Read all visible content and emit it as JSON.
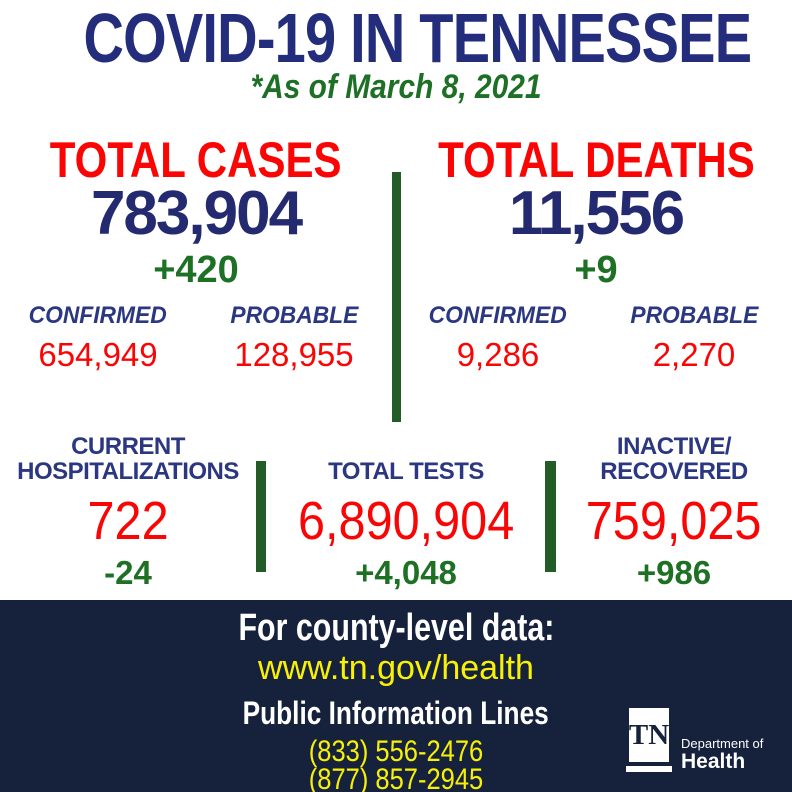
{
  "header": {
    "title": "COVID-19 IN TENNESSEE",
    "subtitle": "*As of March 8, 2021"
  },
  "colors": {
    "title_navy": "#232d7c",
    "number_navy": "#232a70",
    "label_navy": "#2b3780",
    "red": "#f90505",
    "green_text": "#1e7025",
    "green_divider": "#245c27",
    "footer_bg": "#16223c",
    "yellow": "#f8f106",
    "white": "#ffffff"
  },
  "top_stats": [
    {
      "label": "TOTAL CASES",
      "value": "783,904",
      "change": "+420",
      "breakdown": [
        {
          "label": "CONFIRMED",
          "value": "654,949"
        },
        {
          "label": "PROBABLE",
          "value": "128,955"
        }
      ]
    },
    {
      "label": "TOTAL DEATHS",
      "value": "11,556",
      "change": "+9",
      "breakdown": [
        {
          "label": "CONFIRMED",
          "value": "9,286"
        },
        {
          "label": "PROBABLE",
          "value": "2,270"
        }
      ]
    }
  ],
  "mid_stats": [
    {
      "label": "CURRENT\nHOSPITALIZATIONS",
      "value": "722",
      "change": "-24"
    },
    {
      "label": "TOTAL TESTS",
      "value": "6,890,904",
      "change": "+4,048"
    },
    {
      "label": "INACTIVE/\nRECOVERED",
      "value": "759,025",
      "change": "+986"
    }
  ],
  "footer": {
    "county_heading": "For county-level data:",
    "url": "www.tn.gov/health",
    "info_heading": "Public Information Lines",
    "phones": [
      "(833) 556-2476",
      "(877) 857-2945"
    ],
    "logo": {
      "abbr": "TN",
      "dept": "Department of",
      "name": "Health"
    }
  }
}
